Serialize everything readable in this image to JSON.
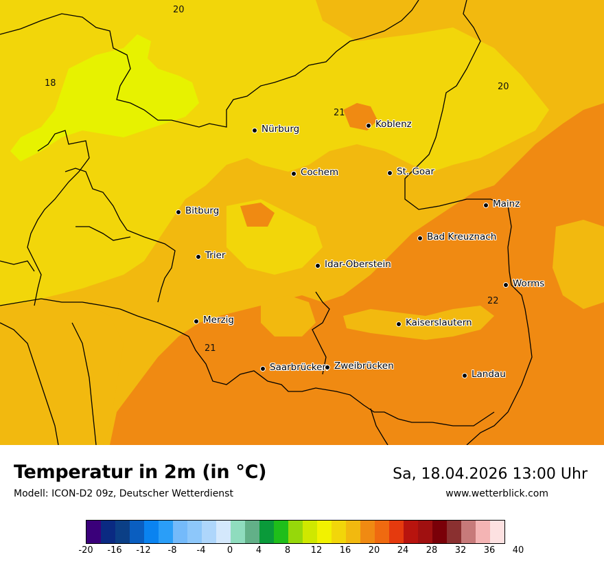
{
  "map": {
    "cities": [
      {
        "name": "Nürburg"
      },
      {
        "name": "Koblenz"
      },
      {
        "name": "Cochem"
      },
      {
        "name": "St. Goar"
      },
      {
        "name": "Mainz"
      },
      {
        "name": "Bitburg"
      },
      {
        "name": "Bad Kreuznach"
      },
      {
        "name": "Trier"
      },
      {
        "name": "Idar-Oberstein"
      },
      {
        "name": "Worms"
      },
      {
        "name": "Merzig"
      },
      {
        "name": "Kaiserslautern"
      },
      {
        "name": "Saarbrücken"
      },
      {
        "name": "Zweibrücken"
      },
      {
        "name": "Landau"
      }
    ],
    "isolines": [
      {
        "label": "20"
      },
      {
        "label": "18"
      },
      {
        "label": "21"
      },
      {
        "label": "20"
      },
      {
        "label": "22"
      },
      {
        "label": "21"
      }
    ],
    "colors": {
      "yellow_green": "#e7f200",
      "yellow": "#f2d60a",
      "orange_light": "#f2b90f",
      "orange": "#f08a12"
    }
  },
  "footer": {
    "title": "Temperatur in 2m (in °C)",
    "model": "Modell: ICON-D2 09z, Deutscher Wetterdienst",
    "datetime": "Sa, 18.04.2026 13:00 Uhr",
    "site": "www.wetterblick.com"
  },
  "legend": {
    "colors": [
      "#3a007a",
      "#0a2a82",
      "#0b3f86",
      "#0a5ec0",
      "#0a83f0",
      "#2a9ef8",
      "#74bafa",
      "#8dc7fa",
      "#aed6fb",
      "#d4e8fc",
      "#8fdcbe",
      "#62b088",
      "#0a9a3a",
      "#1fbe1a",
      "#96d80a",
      "#cfe800",
      "#f2f200",
      "#f2d60a",
      "#f2b90f",
      "#f08a12",
      "#ef6a10",
      "#e53a0e",
      "#b8140e",
      "#a01010",
      "#7a0008",
      "#8a3030",
      "#c77a7a",
      "#f4b4b4",
      "#fde1e1"
    ],
    "ticks": [
      "-20",
      "-16",
      "-12",
      "-8",
      "-4",
      "0",
      "4",
      "8",
      "12",
      "16",
      "20",
      "24",
      "28",
      "32",
      "36",
      "40"
    ]
  }
}
